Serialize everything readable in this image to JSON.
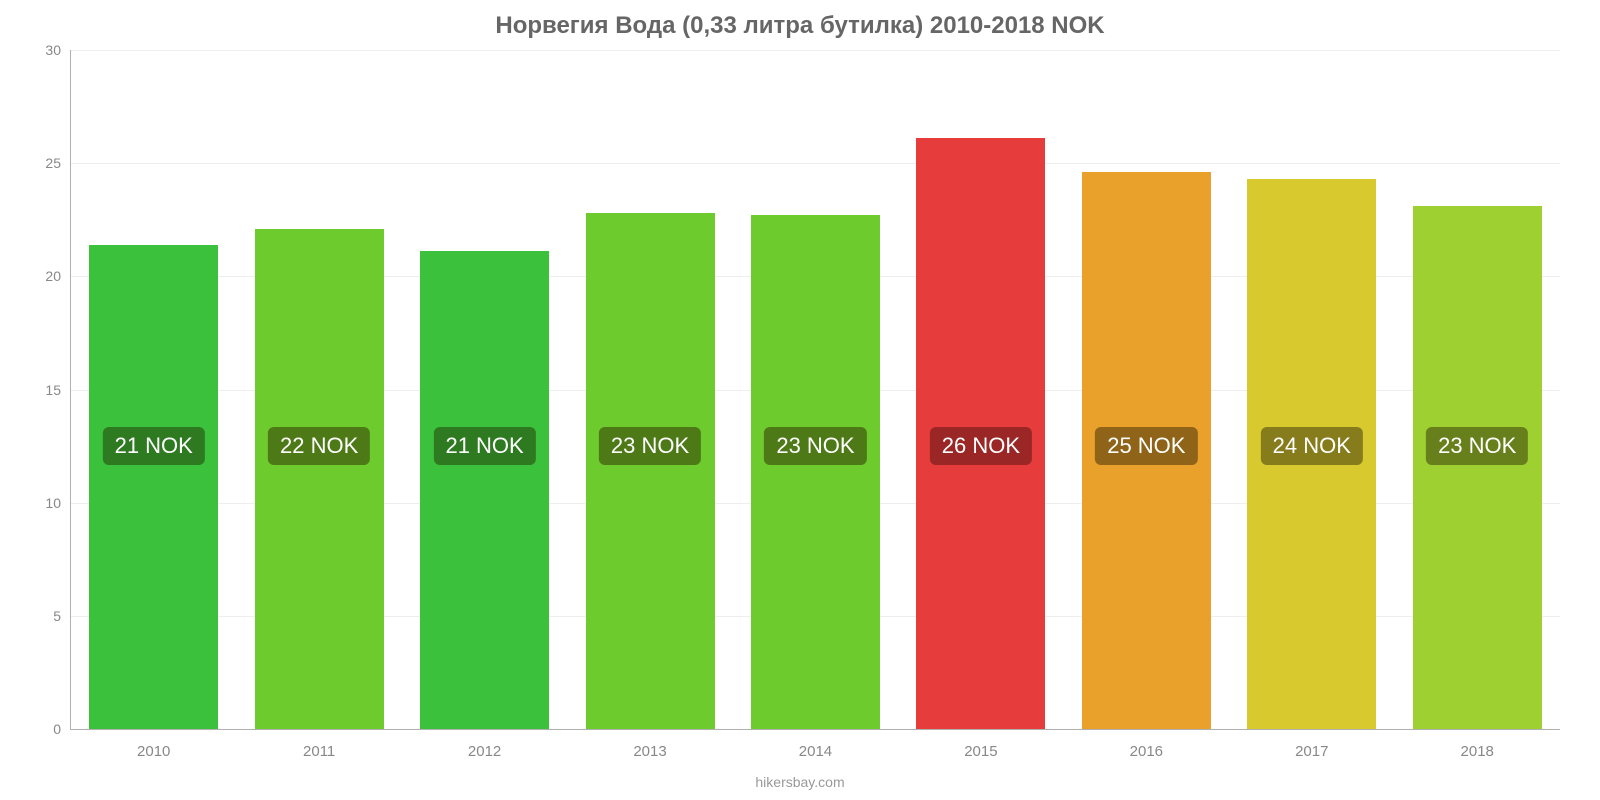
{
  "chart": {
    "type": "bar",
    "title": "Норвегия Вода (0,33 литра бутилка) 2010-2018 NOK",
    "title_fontsize": 24,
    "title_color": "#666666",
    "background_color": "#ffffff",
    "grid_color": "#eeeeee",
    "axis_color": "#b0b0b0",
    "tick_label_color": "#888888",
    "tick_label_fontsize": 14,
    "ylim": [
      0,
      30
    ],
    "ytick_step": 5,
    "yticks": [
      0,
      5,
      10,
      15,
      20,
      25,
      30
    ],
    "bar_width_pct": 78,
    "bar_label_fontsize": 22,
    "bar_label_color": "#ffffff",
    "bar_label_radius": 6,
    "bar_label_y_value": 12.5,
    "categories": [
      "2010",
      "2011",
      "2012",
      "2013",
      "2014",
      "2015",
      "2016",
      "2017",
      "2018"
    ],
    "values": [
      21.4,
      22.1,
      21.1,
      22.8,
      22.7,
      26.1,
      24.6,
      24.3,
      23.1
    ],
    "value_labels": [
      "21 NOK",
      "22 NOK",
      "21 NOK",
      "23 NOK",
      "23 NOK",
      "26 NOK",
      "25 NOK",
      "24 NOK",
      "23 NOK"
    ],
    "bar_colors": [
      "#3cc13c",
      "#6ecb2d",
      "#3cc13c",
      "#6ecb2d",
      "#6ecb2d",
      "#e73c3c",
      "#e9a12b",
      "#d8c92e",
      "#9ed031"
    ],
    "label_bg_colors": [
      "#2e7a21",
      "#4d7a17",
      "#2e7a21",
      "#4d7a17",
      "#4d7a17",
      "#9a2626",
      "#8f6418",
      "#877c1c",
      "#67801c"
    ],
    "attribution": "hikersbay.com",
    "attribution_fontsize": 14,
    "attribution_color": "#999999"
  }
}
